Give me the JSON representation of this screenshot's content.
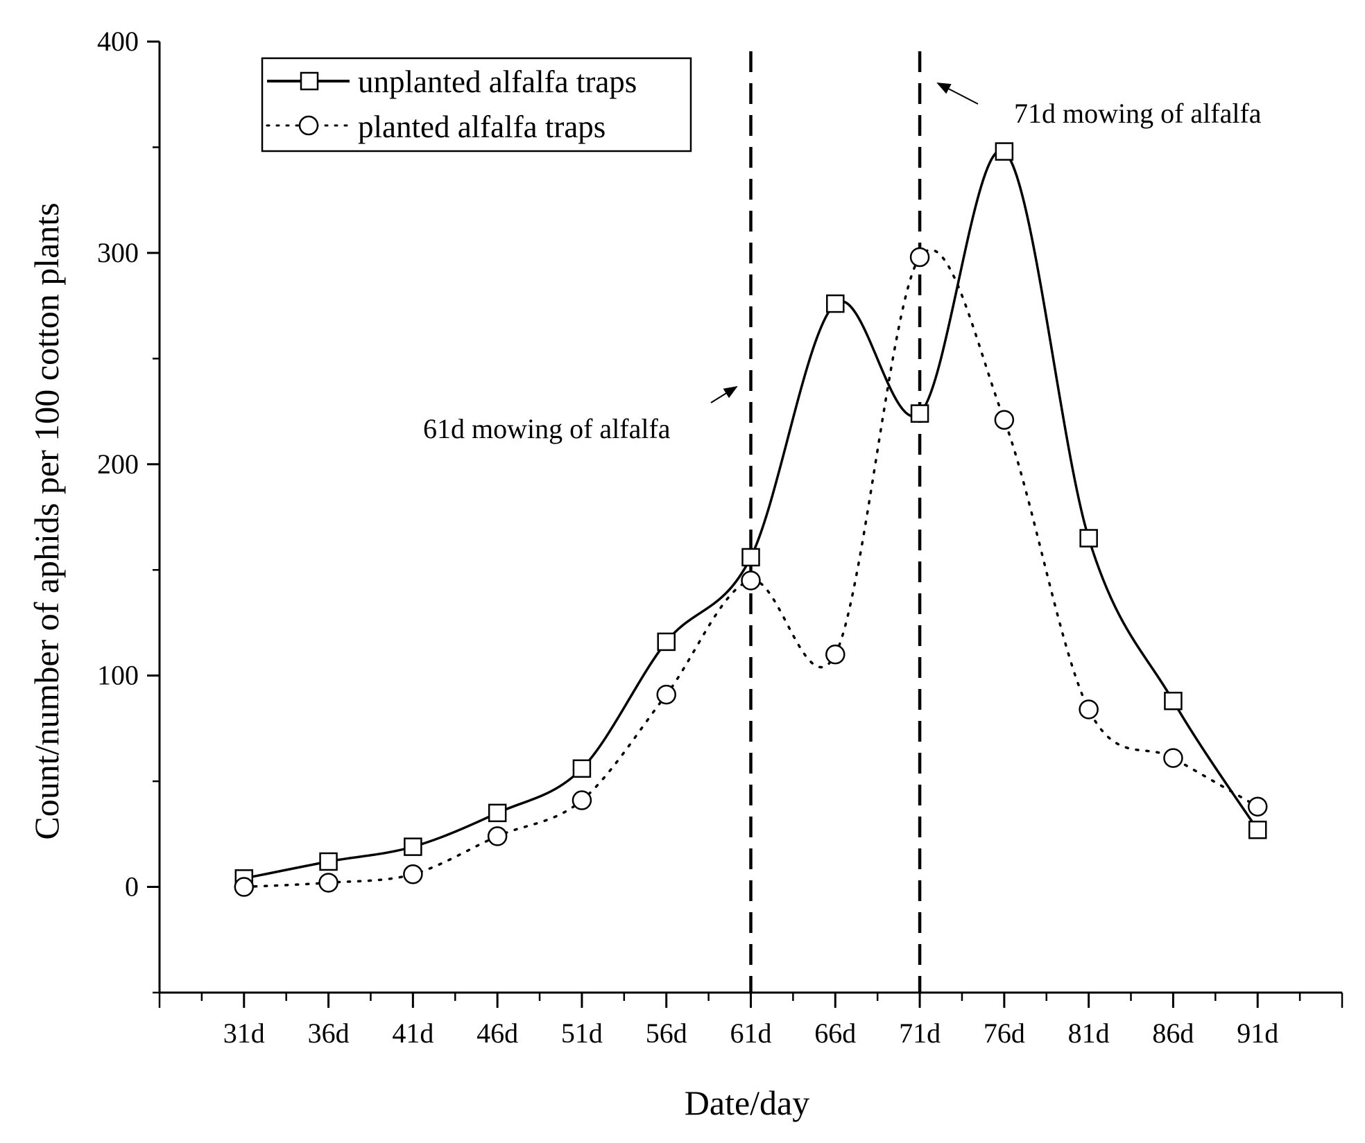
{
  "chart_data": {
    "type": "line",
    "title": "",
    "xlabel": "Date/day",
    "ylabel": "Count/number of aphids per 100 cotton plants",
    "x": [
      31,
      36,
      41,
      46,
      51,
      56,
      61,
      66,
      71,
      76,
      81,
      86,
      91
    ],
    "x_tick_labels": [
      "31d",
      "36d",
      "41d",
      "46d",
      "51d",
      "56d",
      "61d",
      "66d",
      "71d",
      "76d",
      "81d",
      "86d",
      "91d"
    ],
    "xlim": [
      26,
      96
    ],
    "ylim": [
      -50,
      400
    ],
    "y_ticks": [
      0,
      100,
      200,
      300,
      400
    ],
    "y_tick_labels": [
      "0",
      "100",
      "200",
      "300",
      "400"
    ],
    "grid": false,
    "legend_position": "top-left",
    "series": [
      {
        "name": "unplanted alfalfa traps",
        "marker": "square",
        "line_style": "solid",
        "values": [
          4,
          12,
          19,
          35,
          56,
          116,
          156,
          276,
          224,
          348,
          165,
          88,
          27
        ]
      },
      {
        "name": "planted alfalfa traps",
        "marker": "circle",
        "line_style": "dotted",
        "values": [
          0,
          2,
          6,
          24,
          41,
          91,
          145,
          110,
          298,
          221,
          84,
          61,
          38
        ]
      }
    ],
    "vertical_lines": [
      {
        "x": 61,
        "style": "dashed"
      },
      {
        "x": 71,
        "style": "dashed"
      }
    ],
    "annotations": [
      {
        "text": "61d mowing of alfalfa",
        "points_to_x": 61
      },
      {
        "text": "71d mowing of alfalfa",
        "points_to_x": 71
      }
    ]
  }
}
